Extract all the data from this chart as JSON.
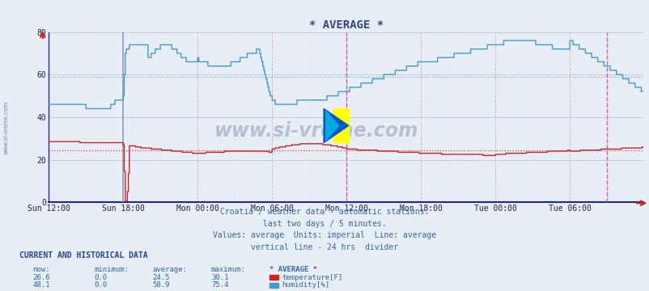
{
  "title": "* AVERAGE *",
  "background_color": "#e8eef5",
  "plot_bg_color": "#e8eef5",
  "xlabel_ticks": [
    "Sun 12:00",
    "Sun 18:00",
    "Mon 00:00",
    "Mon 06:00",
    "Mon 12:00",
    "Mon 18:00",
    "Tue 00:00",
    "Tue 06:00"
  ],
  "ylim": [
    0,
    80
  ],
  "yticks": [
    0,
    20,
    40,
    60,
    80
  ],
  "temp_color": "#cc2222",
  "humidity_color": "#4499cc",
  "temp_avg_line": 24.5,
  "humidity_avg_line": 58.9,
  "vline_sun18_color": "#7799cc",
  "vline_mon12_color": "#cc44cc",
  "vline_end_color": "#cc44cc",
  "grid_v_color": "#ddaaaa",
  "grid_h_color": "#ccccdd",
  "footer_lines": [
    "Croatia / weather data - automatic stations.",
    "last two days / 5 minutes.",
    "Values: average  Units: imperial  Line: average",
    "vertical line - 24 hrs  divider"
  ],
  "table_header": "CURRENT AND HISTORICAL DATA",
  "col_headers": [
    "now:",
    "minimum:",
    "average:",
    "maximum:",
    "* AVERAGE *"
  ],
  "row1": [
    "26.6",
    "0.0",
    "24.5",
    "30.1",
    "temperature[F]"
  ],
  "row2": [
    "48.1",
    "0.0",
    "58.9",
    "75.4",
    "humidity[%]"
  ],
  "watermark": "www.si-vreme.com",
  "sidebar_text": "www.si-vreme.com",
  "title_color": "#334488",
  "text_color": "#3366aa",
  "table_header_color": "#2244aa",
  "axis_color": "#2222aa",
  "border_color": "#2222aa"
}
